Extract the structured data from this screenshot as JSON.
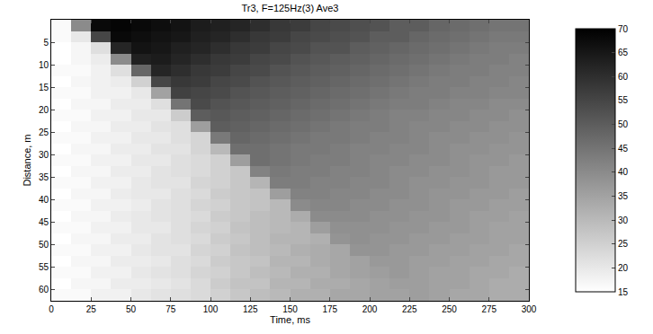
{
  "chart_data": {
    "type": "heatmap",
    "title": "Tr3, F=125Hz(3) Ave3",
    "x_label": "Time, ms",
    "y_label": "Distance, m",
    "x": [
      6.25,
      18.75,
      31.25,
      43.75,
      56.25,
      68.75,
      81.25,
      93.75,
      106.25,
      118.75,
      131.25,
      143.75,
      156.25,
      168.75,
      181.25,
      193.75,
      206.25,
      218.75,
      231.25,
      243.75,
      256.25,
      268.75,
      281.25,
      293.75
    ],
    "y": [
      1.25,
      3.75,
      6.25,
      8.75,
      11.25,
      13.75,
      16.25,
      18.75,
      21.25,
      23.75,
      26.25,
      28.75,
      31.25,
      33.75,
      36.25,
      38.75,
      41.25,
      43.75,
      46.25,
      48.75,
      51.25,
      53.75,
      56.25,
      58.75,
      61.25
    ],
    "z": [
      [
        16,
        40,
        68,
        69,
        68,
        67,
        66,
        64,
        63,
        62,
        60,
        58,
        57,
        55,
        54,
        53,
        52,
        50,
        50,
        48,
        47,
        46,
        45,
        45
      ],
      [
        16,
        20,
        55,
        68,
        67,
        66,
        65,
        63,
        62,
        60,
        58,
        57,
        55,
        54,
        53,
        52,
        50,
        50,
        48,
        47,
        46,
        45,
        44,
        44
      ],
      [
        15,
        17,
        22,
        62,
        66,
        65,
        63,
        62,
        60,
        58,
        57,
        55,
        54,
        52,
        52,
        50,
        49,
        48,
        47,
        46,
        45,
        44,
        43,
        43
      ],
      [
        15,
        17,
        19,
        40,
        63,
        64,
        62,
        60,
        58,
        57,
        55,
        54,
        52,
        51,
        50,
        49,
        48,
        47,
        46,
        45,
        44,
        43,
        43,
        42
      ],
      [
        16,
        16,
        18,
        22,
        48,
        62,
        60,
        58,
        57,
        55,
        54,
        52,
        51,
        50,
        49,
        48,
        47,
        46,
        45,
        44,
        43,
        43,
        42,
        42
      ],
      [
        15,
        17,
        18,
        19,
        25,
        55,
        58,
        57,
        55,
        54,
        52,
        51,
        50,
        49,
        48,
        47,
        46,
        45,
        44,
        43,
        43,
        42,
        42,
        41
      ],
      [
        16,
        16,
        18,
        18,
        20,
        35,
        56,
        55,
        54,
        52,
        51,
        50,
        49,
        48,
        47,
        46,
        45,
        44,
        43,
        43,
        42,
        42,
        41,
        41
      ],
      [
        15,
        17,
        17,
        19,
        19,
        22,
        45,
        54,
        52,
        51,
        50,
        49,
        48,
        47,
        46,
        45,
        44,
        43,
        43,
        42,
        41,
        41,
        40,
        40
      ],
      [
        16,
        16,
        18,
        18,
        20,
        20,
        26,
        50,
        51,
        50,
        49,
        48,
        47,
        46,
        45,
        44,
        43,
        42,
        42,
        41,
        41,
        40,
        40,
        39
      ],
      [
        15,
        17,
        17,
        19,
        19,
        21,
        22,
        36,
        50,
        49,
        48,
        47,
        46,
        45,
        44,
        43,
        43,
        42,
        41,
        41,
        40,
        40,
        39,
        39
      ],
      [
        16,
        16,
        18,
        18,
        20,
        20,
        22,
        24,
        44,
        48,
        47,
        46,
        45,
        44,
        44,
        43,
        42,
        42,
        41,
        40,
        40,
        39,
        39,
        38
      ],
      [
        15,
        17,
        17,
        19,
        19,
        21,
        21,
        24,
        30,
        46,
        46,
        45,
        44,
        44,
        43,
        42,
        42,
        41,
        41,
        40,
        39,
        39,
        38,
        38
      ],
      [
        16,
        16,
        18,
        18,
        20,
        20,
        22,
        23,
        25,
        36,
        46,
        45,
        44,
        43,
        43,
        42,
        41,
        41,
        40,
        40,
        39,
        38,
        38,
        37
      ],
      [
        15,
        17,
        17,
        19,
        19,
        21,
        22,
        23,
        25,
        27,
        42,
        44,
        43,
        43,
        42,
        42,
        41,
        40,
        40,
        39,
        39,
        38,
        37,
        37
      ],
      [
        16,
        16,
        18,
        18,
        20,
        21,
        21,
        24,
        25,
        27,
        31,
        43,
        43,
        42,
        42,
        41,
        41,
        40,
        39,
        39,
        38,
        38,
        37,
        37
      ],
      [
        15,
        17,
        17,
        19,
        20,
        20,
        22,
        23,
        26,
        27,
        28,
        36,
        42,
        42,
        41,
        41,
        40,
        40,
        39,
        38,
        38,
        37,
        37,
        36
      ],
      [
        16,
        16,
        18,
        18,
        19,
        21,
        22,
        24,
        25,
        27,
        28,
        30,
        40,
        41,
        41,
        40,
        40,
        39,
        39,
        38,
        37,
        37,
        36,
        36
      ],
      [
        15,
        17,
        17,
        19,
        20,
        21,
        22,
        23,
        26,
        27,
        29,
        30,
        33,
        40,
        40,
        40,
        39,
        39,
        38,
        38,
        37,
        36,
        36,
        35
      ],
      [
        16,
        16,
        18,
        18,
        20,
        20,
        22,
        24,
        25,
        28,
        29,
        30,
        31,
        36,
        39,
        39,
        39,
        38,
        38,
        37,
        37,
        36,
        35,
        35
      ],
      [
        15,
        17,
        17,
        19,
        19,
        21,
        22,
        23,
        26,
        27,
        29,
        31,
        31,
        32,
        38,
        39,
        38,
        38,
        37,
        37,
        36,
        36,
        35,
        35
      ],
      [
        16,
        16,
        18,
        18,
        20,
        21,
        21,
        24,
        25,
        28,
        29,
        30,
        32,
        33,
        34,
        38,
        38,
        37,
        37,
        36,
        36,
        35,
        35,
        34
      ],
      [
        15,
        17,
        17,
        19,
        19,
        20,
        22,
        23,
        26,
        27,
        28,
        31,
        31,
        33,
        34,
        35,
        37,
        37,
        36,
        36,
        35,
        35,
        34,
        34
      ],
      [
        16,
        16,
        18,
        18,
        20,
        21,
        22,
        24,
        25,
        27,
        29,
        30,
        32,
        32,
        34,
        35,
        36,
        37,
        36,
        35,
        35,
        34,
        34,
        33
      ],
      [
        15,
        17,
        17,
        19,
        19,
        20,
        21,
        23,
        26,
        28,
        28,
        31,
        31,
        33,
        33,
        34,
        35,
        36,
        36,
        35,
        35,
        34,
        33,
        33
      ],
      [
        16,
        16,
        18,
        18,
        20,
        21,
        22,
        23,
        25,
        27,
        29,
        30,
        32,
        32,
        34,
        34,
        35,
        35,
        36,
        35,
        34,
        34,
        33,
        33
      ]
    ],
    "xlim": [
      0,
      300
    ],
    "xticks": [
      0,
      25,
      50,
      75,
      100,
      125,
      150,
      175,
      200,
      225,
      250,
      275,
      300
    ],
    "ylim": [
      62.5,
      0
    ],
    "yticks": [
      5,
      10,
      15,
      20,
      25,
      30,
      35,
      40,
      45,
      50,
      55,
      60
    ],
    "colorbar": {
      "range": [
        15,
        70
      ],
      "ticks": [
        15,
        20,
        25,
        30,
        35,
        40,
        45,
        50,
        55,
        60,
        65,
        70
      ]
    }
  }
}
